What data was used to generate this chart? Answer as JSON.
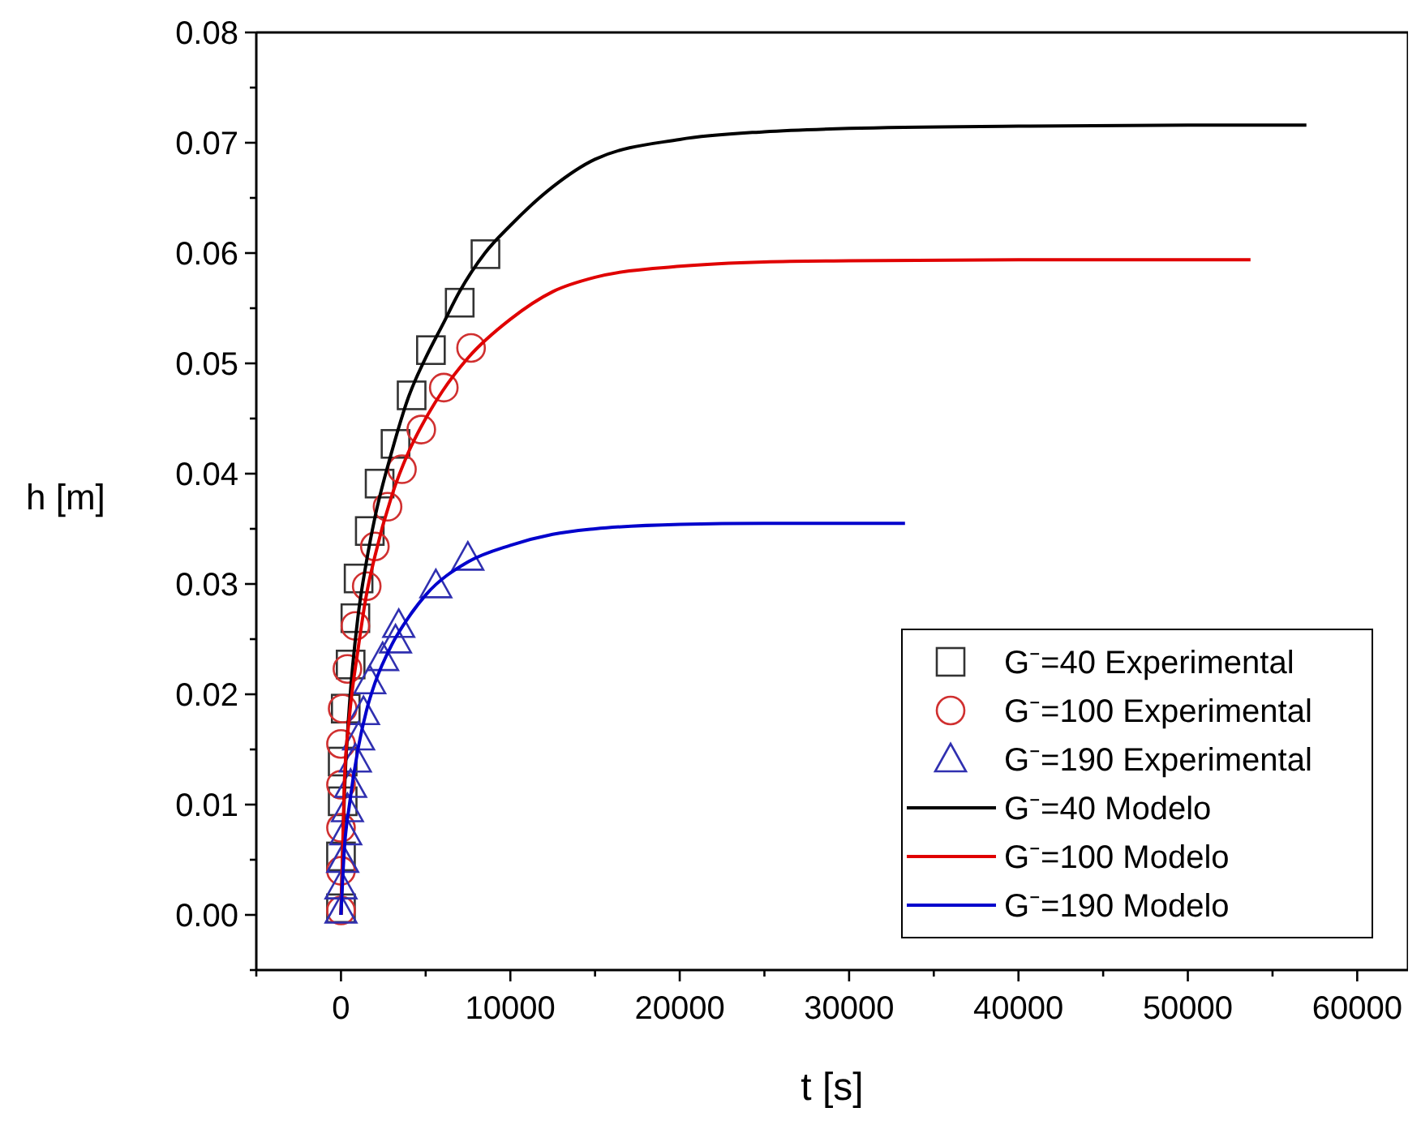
{
  "chart_data": {
    "type": "scatter",
    "xlabel": "t [s]",
    "ylabel": "h [m]",
    "xlim": [
      -5000,
      63000
    ],
    "ylim": [
      -0.005,
      0.08
    ],
    "xticks": [
      {
        "value": -5000,
        "label": null
      },
      0,
      {
        "value": 5000,
        "label": null
      },
      10000,
      {
        "value": 15000,
        "label": null
      },
      20000,
      {
        "value": 25000,
        "label": null
      },
      30000,
      {
        "value": 35000,
        "label": null
      },
      40000,
      {
        "value": 45000,
        "label": null
      },
      50000,
      {
        "value": 55000,
        "label": null
      },
      60000
    ],
    "yticks": [
      {
        "value": -0.005,
        "label": null
      },
      {
        "value": 0,
        "label": "0.00"
      },
      {
        "value": 0.005,
        "label": null
      },
      {
        "value": 0.01,
        "label": "0.01"
      },
      {
        "value": 0.015,
        "label": null
      },
      {
        "value": 0.02,
        "label": "0.02"
      },
      {
        "value": 0.025,
        "label": null
      },
      {
        "value": 0.03,
        "label": "0.03"
      },
      {
        "value": 0.035,
        "label": null
      },
      {
        "value": 0.04,
        "label": "0.04"
      },
      {
        "value": 0.045,
        "label": null
      },
      {
        "value": 0.05,
        "label": "0.05"
      },
      {
        "value": 0.055,
        "label": null
      },
      {
        "value": 0.06,
        "label": "0.06"
      },
      {
        "value": 0.065,
        "label": null
      },
      {
        "value": 0.07,
        "label": "0.07"
      },
      {
        "value": 0.075,
        "label": null
      },
      {
        "value": 0.08,
        "label": "0.08"
      }
    ],
    "grid": false,
    "legend": "bottom right",
    "series": [
      {
        "name": "G⁻=40 Experimental",
        "marker": "square",
        "color": "#333333",
        "x": [
          0,
          0,
          100,
          100,
          280,
          570,
          850,
          1040,
          1700,
          2280,
          3220,
          4170,
          5310,
          7010,
          8530
        ],
        "values": [
          0.0006,
          0.0053,
          0.0103,
          0.0139,
          0.0187,
          0.0227,
          0.0269,
          0.0305,
          0.0348,
          0.0391,
          0.0427,
          0.0471,
          0.0512,
          0.0555,
          0.0599
        ]
      },
      {
        "name": "G⁻=100 Experimental",
        "marker": "circle",
        "color": "#d03030",
        "x": [
          0,
          0,
          0,
          0,
          0,
          100,
          380,
          850,
          1520,
          2000,
          2750,
          3600,
          4740,
          6070,
          7680
        ],
        "values": [
          0.0004,
          0.004,
          0.0079,
          0.0118,
          0.0155,
          0.0187,
          0.0223,
          0.0262,
          0.0298,
          0.0334,
          0.037,
          0.0404,
          0.044,
          0.0478,
          0.0514
        ]
      },
      {
        "name": "G⁻=190 Experimental",
        "marker": "triangle",
        "color": "#3030b0",
        "x": [
          0,
          0,
          100,
          280,
          380,
          570,
          850,
          1040,
          1330,
          1700,
          2460,
          3220,
          3410,
          5600,
          7490
        ],
        "values": [
          0.0004,
          0.0026,
          0.005,
          0.0075,
          0.0096,
          0.0118,
          0.0141,
          0.0161,
          0.0184,
          0.0212,
          0.0233,
          0.0249,
          0.0263,
          0.0299,
          0.0324
        ]
      },
      {
        "name": "G⁻=40 Modelo",
        "type": "line",
        "marker": "none",
        "color": "#000000",
        "x": [
          0,
          200,
          500,
          1000,
          1500,
          2000,
          3000,
          4000,
          5000,
          6000,
          7000,
          8500,
          10000,
          12500,
          15000,
          20000,
          25000,
          30000,
          40000,
          50000,
          57000
        ],
        "values": [
          0,
          0.011,
          0.019,
          0.027,
          0.032,
          0.036,
          0.042,
          0.047,
          0.0505,
          0.0535,
          0.0565,
          0.06,
          0.0625,
          0.066,
          0.0685,
          0.0703,
          0.071,
          0.0713,
          0.0715,
          0.0716,
          0.0716
        ]
      },
      {
        "name": "G⁻=100 Modelo",
        "type": "line",
        "marker": "none",
        "color": "#e00000",
        "x": [
          0,
          200,
          500,
          1000,
          1500,
          2000,
          3000,
          4000,
          5000,
          6000,
          7500,
          10000,
          12500,
          15000,
          20000,
          25000,
          30000,
          40000,
          53700
        ],
        "values": [
          0,
          0.012,
          0.018,
          0.024,
          0.029,
          0.0325,
          0.038,
          0.042,
          0.045,
          0.0475,
          0.0505,
          0.054,
          0.0565,
          0.0578,
          0.0588,
          0.0592,
          0.0593,
          0.0594,
          0.0594
        ]
      },
      {
        "name": "G⁻=190 Modelo",
        "type": "line",
        "marker": "none",
        "color": "#0000cc",
        "x": [
          0,
          200,
          500,
          1000,
          1500,
          2000,
          3000,
          4000,
          5000,
          7500,
          10000,
          12500,
          15000,
          20000,
          25000,
          33300
        ],
        "values": [
          0,
          0.006,
          0.01,
          0.015,
          0.0185,
          0.021,
          0.0245,
          0.027,
          0.029,
          0.032,
          0.0335,
          0.0345,
          0.035,
          0.0354,
          0.0355,
          0.0355
        ]
      }
    ]
  }
}
